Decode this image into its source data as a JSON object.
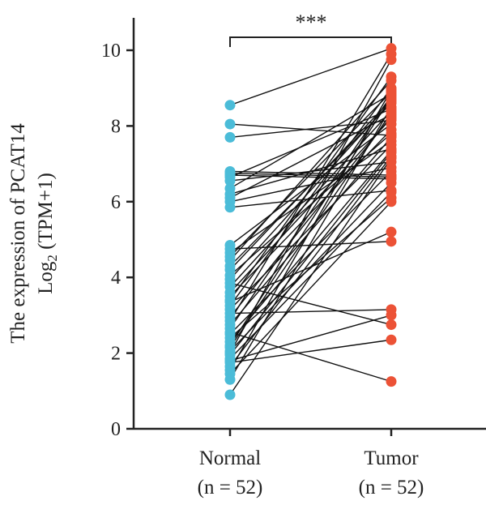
{
  "chart_data": {
    "type": "paired-dot",
    "ylabel_line1": "The expression of PCAT14",
    "ylabel_line2_base": "Log",
    "ylabel_line2_sub": "2",
    "ylabel_line2_rest": " (TPM+1)",
    "yticks": [
      0,
      2,
      4,
      6,
      8,
      10
    ],
    "ylim": [
      0,
      10.5
    ],
    "categories": [
      {
        "name": "Normal",
        "n_label": "(n = 52)",
        "color": "#4bbcd8"
      },
      {
        "name": "Tumor",
        "n_label": "(n = 52)",
        "color": "#ec5236"
      }
    ],
    "significance": "***",
    "pairs": [
      [
        8.55,
        10.05
      ],
      [
        8.05,
        7.75
      ],
      [
        7.7,
        8.15
      ],
      [
        6.8,
        6.7
      ],
      [
        6.75,
        6.65
      ],
      [
        6.7,
        6.6
      ],
      [
        6.65,
        8.45
      ],
      [
        6.55,
        7.05
      ],
      [
        6.35,
        8.85
      ],
      [
        6.2,
        7.4
      ],
      [
        6.1,
        8.3
      ],
      [
        6.0,
        6.9
      ],
      [
        5.85,
        6.3
      ],
      [
        4.85,
        8.05
      ],
      [
        4.75,
        4.95
      ],
      [
        4.65,
        7.6
      ],
      [
        4.55,
        8.9
      ],
      [
        4.45,
        9.2
      ],
      [
        4.3,
        8.6
      ],
      [
        4.2,
        8.7
      ],
      [
        4.05,
        7.8
      ],
      [
        3.95,
        8.65
      ],
      [
        3.85,
        2.75
      ],
      [
        3.75,
        8.4
      ],
      [
        3.6,
        8.2
      ],
      [
        3.5,
        7.9
      ],
      [
        3.4,
        9.3
      ],
      [
        3.35,
        5.2
      ],
      [
        3.25,
        9.0
      ],
      [
        3.15,
        7.5
      ],
      [
        3.05,
        3.15
      ],
      [
        2.95,
        8.25
      ],
      [
        2.85,
        9.9
      ],
      [
        2.75,
        7.7
      ],
      [
        2.65,
        8.8
      ],
      [
        2.55,
        1.25
      ],
      [
        2.5,
        6.8
      ],
      [
        2.4,
        6.1
      ],
      [
        2.3,
        7.35
      ],
      [
        2.2,
        8.75
      ],
      [
        2.15,
        8.35
      ],
      [
        2.05,
        6.5
      ],
      [
        2.0,
        9.75
      ],
      [
        1.95,
        7.3
      ],
      [
        1.85,
        6.25
      ],
      [
        1.8,
        3.0
      ],
      [
        1.75,
        2.35
      ],
      [
        1.65,
        7.2
      ],
      [
        1.55,
        8.95
      ],
      [
        1.45,
        6.0
      ],
      [
        1.3,
        8.5
      ],
      [
        0.9,
        7.15
      ]
    ]
  }
}
